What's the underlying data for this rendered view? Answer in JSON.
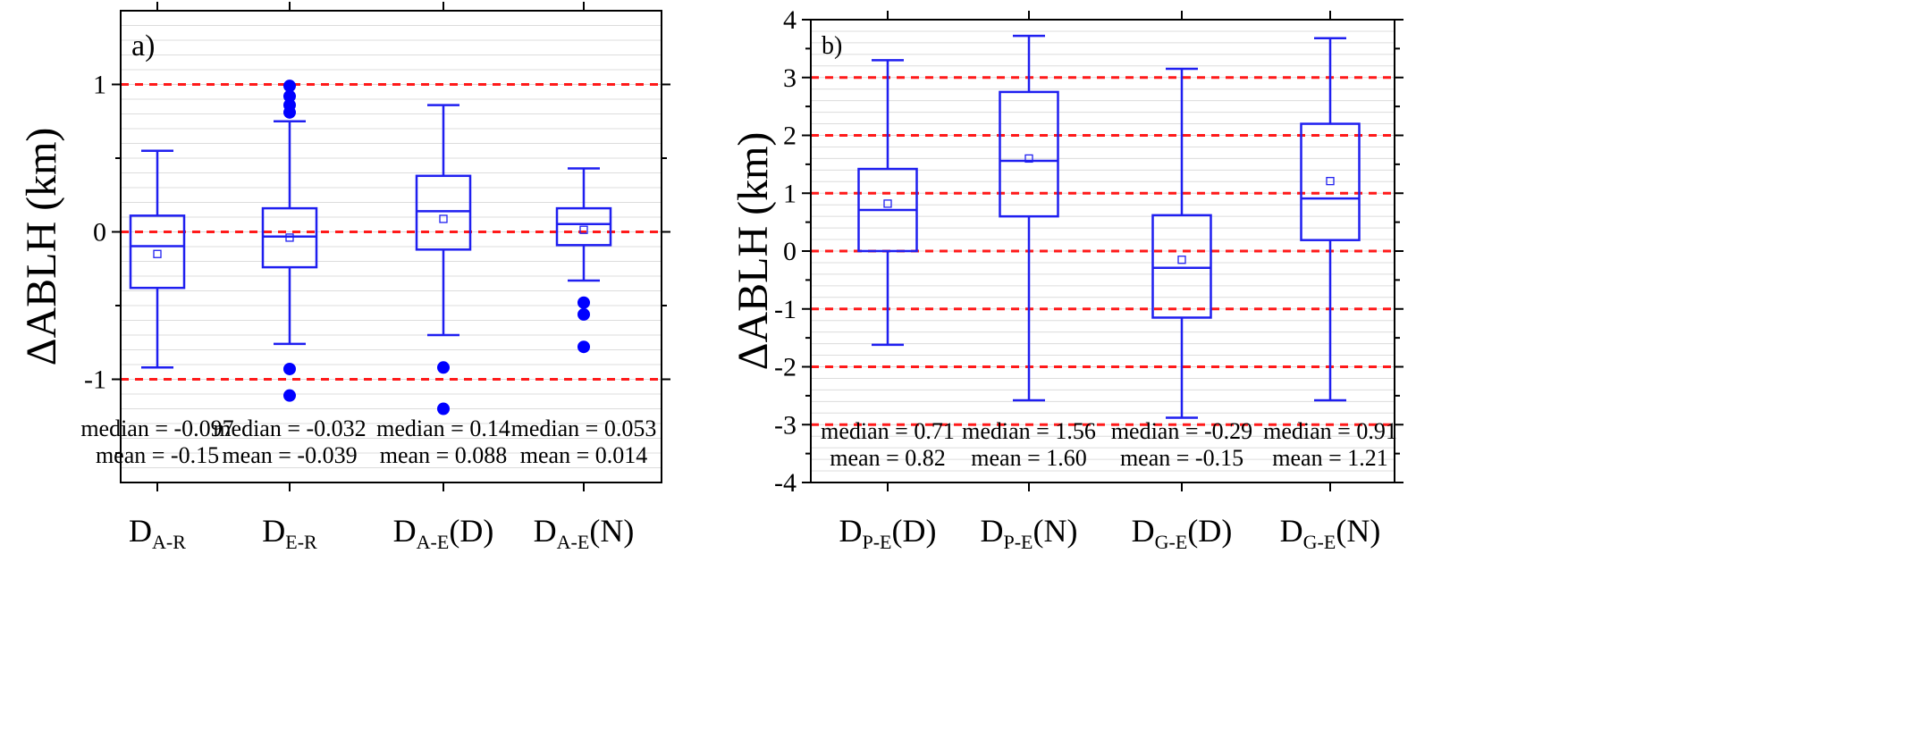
{
  "colors": {
    "box": "#1f1ff0",
    "ref_line": "#ff1a1a",
    "grid": "#dcdcdc",
    "axis": "#000000",
    "outlier": "#0000ff"
  },
  "chart_data": [
    {
      "type": "box",
      "panel_label": "a)",
      "ylabel": "ΔABLH (km)",
      "ylim": [
        -1.7,
        1.5
      ],
      "yticks": [
        -1,
        0,
        1
      ],
      "ytick_labels": [
        "-1",
        "0",
        "1"
      ],
      "minor_grid_step": 0.1,
      "ref_lines": [
        -1,
        0,
        1
      ],
      "stats_rows": [
        "median",
        "mean"
      ],
      "categories": [
        {
          "main": "D",
          "sub": "A-R",
          "suffix": ""
        },
        {
          "main": "D",
          "sub": "E-R",
          "suffix": ""
        },
        {
          "main": "D",
          "sub": "A-E",
          "suffix": "(D)"
        },
        {
          "main": "D",
          "sub": "A-E",
          "suffix": "(N)"
        }
      ],
      "boxes": [
        {
          "whisker_low": -0.92,
          "q1": -0.38,
          "median": -0.097,
          "q3": 0.11,
          "whisker_high": 0.55,
          "mean": -0.15,
          "outliers": [],
          "median_text": "median = -0.097",
          "mean_text": "mean = -0.15"
        },
        {
          "whisker_low": -0.76,
          "q1": -0.24,
          "median": -0.032,
          "q3": 0.16,
          "whisker_high": 0.75,
          "mean": -0.039,
          "outliers": [
            0.99,
            0.92,
            0.86,
            0.81,
            -0.93,
            -1.11
          ],
          "median_text": "median = -0.032",
          "mean_text": "mean = -0.039"
        },
        {
          "whisker_low": -0.7,
          "q1": -0.12,
          "median": 0.14,
          "q3": 0.38,
          "whisker_high": 0.86,
          "mean": 0.088,
          "outliers": [
            -0.92,
            -1.2
          ],
          "median_text": "median = 0.14",
          "mean_text": "mean = 0.088"
        },
        {
          "whisker_low": -0.33,
          "q1": -0.09,
          "median": 0.053,
          "q3": 0.16,
          "whisker_high": 0.43,
          "mean": 0.014,
          "outliers": [
            -0.48,
            -0.56,
            -0.78
          ],
          "median_text": "median = 0.053",
          "mean_text": "mean = 0.014"
        }
      ]
    },
    {
      "type": "box",
      "panel_label": "b)",
      "ylabel": "ΔABLH (km)",
      "ylim": [
        -4,
        4
      ],
      "yticks": [
        -4,
        -3,
        -2,
        -1,
        0,
        1,
        2,
        3,
        4
      ],
      "ytick_labels": [
        "-4",
        "-3",
        "-2",
        "-1",
        "0",
        "1",
        "2",
        "3",
        "4"
      ],
      "minor_grid_step": 0.2,
      "ref_lines": [
        -3,
        -2,
        -1,
        0,
        1,
        2,
        3
      ],
      "stats_rows": [
        "median",
        "mean"
      ],
      "categories": [
        {
          "main": "D",
          "sub": "P-E",
          "suffix": "(D)"
        },
        {
          "main": "D",
          "sub": "P-E",
          "suffix": "(N)"
        },
        {
          "main": "D",
          "sub": "G-E",
          "suffix": "(D)"
        },
        {
          "main": "D",
          "sub": "G-E",
          "suffix": "(N)"
        }
      ],
      "boxes": [
        {
          "whisker_low": -1.62,
          "q1": 0.0,
          "median": 0.71,
          "q3": 1.42,
          "whisker_high": 3.3,
          "mean": 0.82,
          "outliers": [],
          "median_text": "median = 0.71",
          "mean_text": "mean = 0.82"
        },
        {
          "whisker_low": -2.58,
          "q1": 0.6,
          "median": 1.56,
          "q3": 2.75,
          "whisker_high": 3.72,
          "mean": 1.6,
          "outliers": [],
          "median_text": "median = 1.56",
          "mean_text": "mean = 1.60"
        },
        {
          "whisker_low": -2.88,
          "q1": -1.15,
          "median": -0.29,
          "q3": 0.62,
          "whisker_high": 3.15,
          "mean": -0.15,
          "outliers": [],
          "median_text": "median = -0.29",
          "mean_text": "mean = -0.15"
        },
        {
          "whisker_low": -2.58,
          "q1": 0.19,
          "median": 0.91,
          "q3": 2.2,
          "whisker_high": 3.68,
          "mean": 1.21,
          "outliers": [],
          "median_text": "median = 0.91",
          "mean_text": "mean = 1.21"
        }
      ]
    }
  ]
}
